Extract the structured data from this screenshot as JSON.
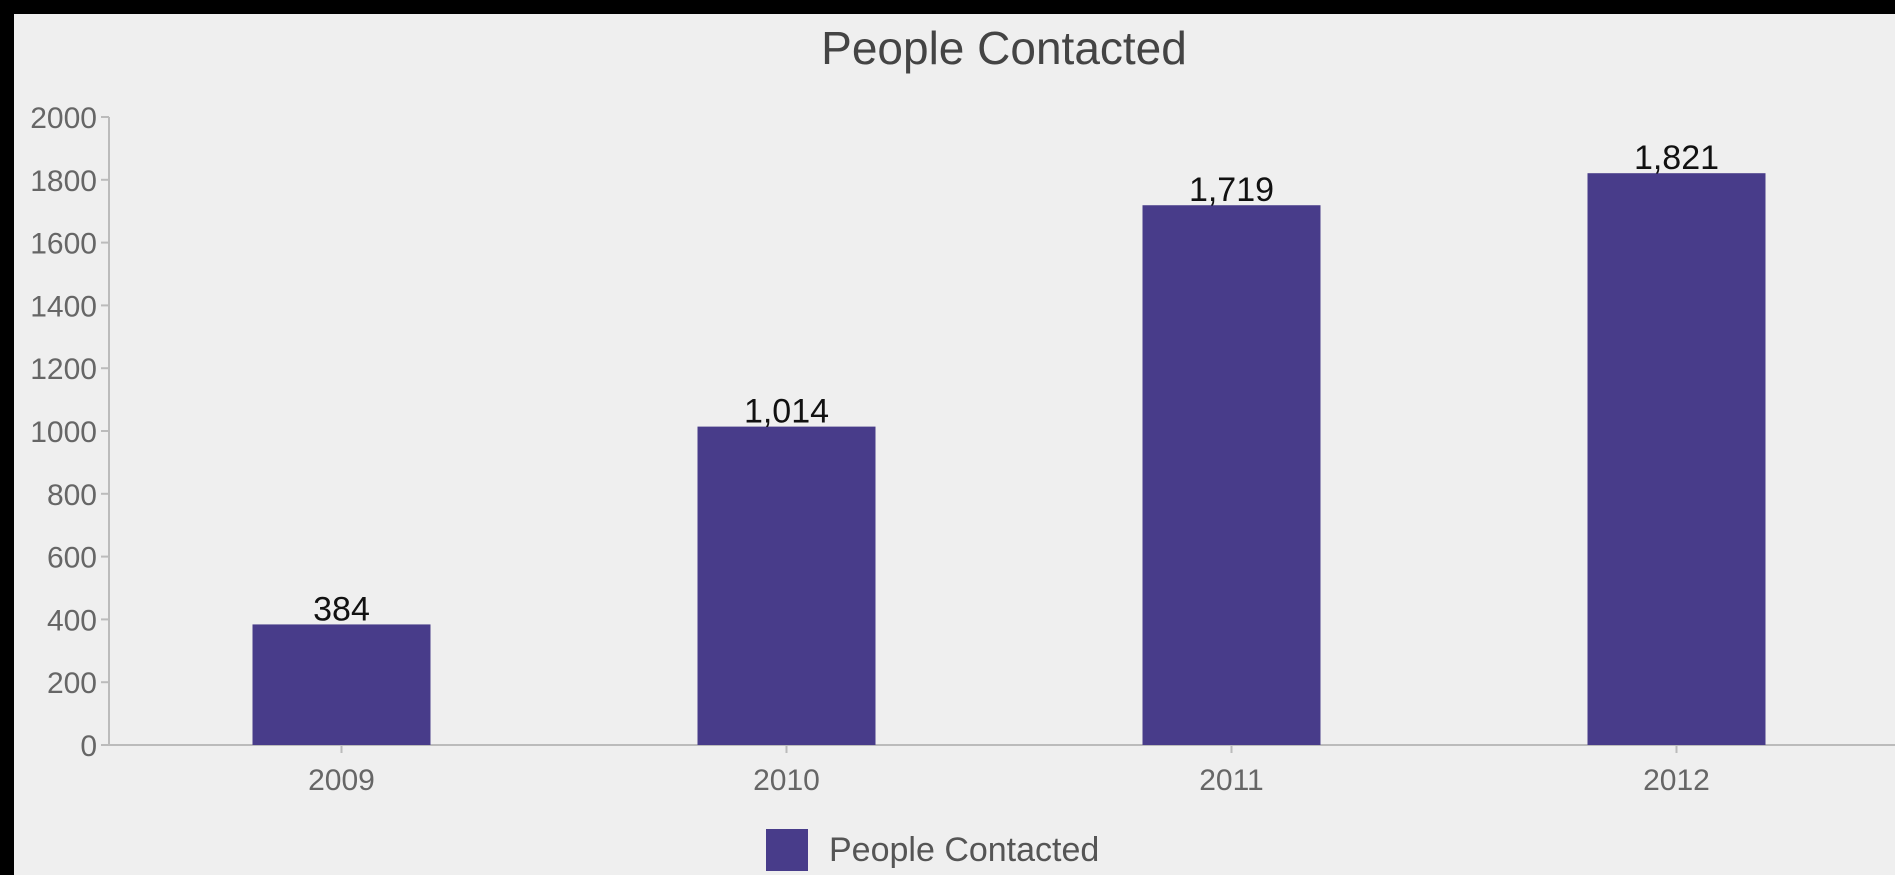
{
  "chart_data": {
    "type": "bar",
    "title": "People Contacted",
    "categories": [
      "2009",
      "2010",
      "2011",
      "2012"
    ],
    "series": [
      {
        "name": "People Contacted",
        "values": [
          384,
          1014,
          1719,
          1821
        ],
        "value_labels": [
          "384",
          "1,014",
          "1,719",
          "1,821"
        ],
        "color": "#483c8a"
      }
    ],
    "ylim": [
      0,
      2000
    ],
    "yticks": [
      "0",
      "200",
      "400",
      "600",
      "800",
      "1000",
      "1200",
      "1400",
      "1600",
      "1800",
      "2000"
    ],
    "xlabel": "",
    "ylabel": "",
    "grid": false,
    "legend_position": "bottom"
  },
  "colors": {
    "background": "#efefef",
    "frame": "#000000",
    "axis": "#bbbbbb",
    "bar": "#483c8a"
  }
}
